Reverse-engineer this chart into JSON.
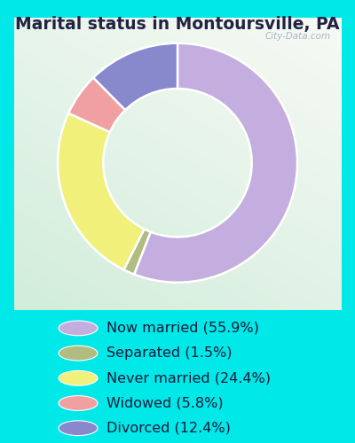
{
  "title": "Marital status in Montoursville, PA",
  "legend_labels": [
    "Now married (55.9%)",
    "Separated (1.5%)",
    "Never married (24.4%)",
    "Widowed (5.8%)",
    "Divorced (12.4%)"
  ],
  "colors": [
    "#c4aee0",
    "#b0bc80",
    "#f0f07a",
    "#f0a0a0",
    "#8888cc"
  ],
  "plot_values": [
    55.9,
    1.5,
    24.4,
    5.8,
    12.4
  ],
  "plot_order_indices": [
    0,
    4,
    3,
    2,
    1
  ],
  "outer_bg": "#00e8e8",
  "title_color": "#222244",
  "title_fontsize": 13.5,
  "legend_fontsize": 11.5,
  "watermark": "City-Data.com",
  "donut_width": 0.38
}
